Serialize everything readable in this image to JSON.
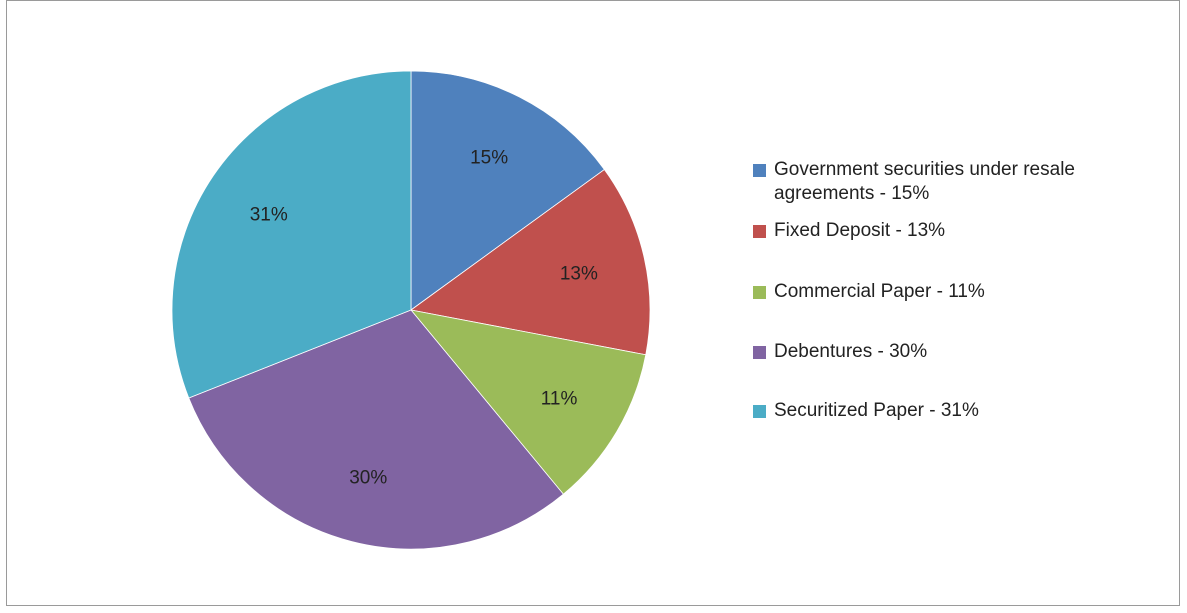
{
  "chart_data": {
    "type": "pie",
    "slices": [
      {
        "label": "15%",
        "value": 15,
        "legend": "Government securities under resale agreements - 15%",
        "color": "#4F81BD"
      },
      {
        "label": "13%",
        "value": 13,
        "legend": "Fixed Deposit - 13%",
        "color": "#C0504D"
      },
      {
        "label": "11%",
        "value": 11,
        "legend": "Commercial Paper - 11%",
        "color": "#9BBB59"
      },
      {
        "label": "30%",
        "value": 30,
        "legend": "Debentures - 30%",
        "color": "#8064A2"
      },
      {
        "label": "31%",
        "value": 31,
        "legend": "Securitized Paper - 31%",
        "color": "#4BACC6"
      }
    ],
    "legend_position": "right",
    "title": ""
  }
}
